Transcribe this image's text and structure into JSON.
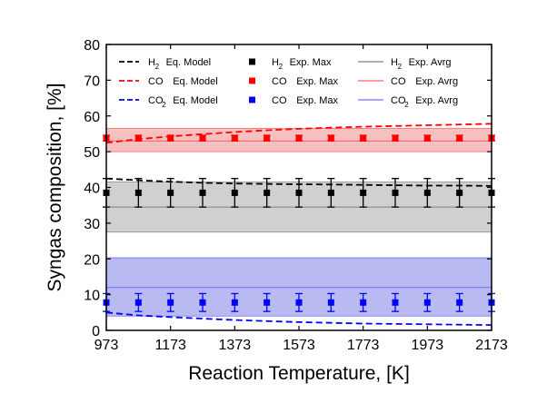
{
  "chart_data": {
    "type": "line",
    "xlabel": "Reaction Temperature, [K]",
    "ylabel": "Syngas composition, [%]",
    "xlim": [
      973,
      2173
    ],
    "ylim": [
      0,
      80
    ],
    "xticks": [
      973,
      1173,
      1373,
      1573,
      1773,
      1973,
      2173
    ],
    "yticks": [
      0,
      10,
      20,
      30,
      40,
      50,
      60,
      70,
      80
    ],
    "legend_position": "top",
    "colors": {
      "H2": "#000000",
      "CO": "#ff0000",
      "CO2": "#0000ff"
    },
    "eq_model": [
      {
        "name": "H2 Eq. Model",
        "color": "#000000",
        "x": [
          973,
          1073,
          1173,
          1273,
          1373,
          1473,
          1573,
          1673,
          1773,
          1873,
          1973,
          2073,
          2173
        ],
        "y": [
          42.5,
          42.0,
          41.6,
          41.3,
          41.1,
          41.0,
          40.9,
          40.8,
          40.7,
          40.6,
          40.5,
          40.5,
          40.4
        ]
      },
      {
        "name": "CO Eq. Model",
        "color": "#ff0000",
        "x": [
          973,
          1073,
          1173,
          1273,
          1373,
          1473,
          1573,
          1673,
          1773,
          1873,
          1973,
          2073,
          2173
        ],
        "y": [
          52.5,
          53.5,
          54.3,
          54.9,
          55.5,
          56.0,
          56.4,
          56.7,
          57.0,
          57.2,
          57.4,
          57.6,
          57.8
        ]
      },
      {
        "name": "CO2 Eq. Model",
        "color": "#0000ff",
        "x": [
          973,
          1073,
          1173,
          1273,
          1373,
          1473,
          1573,
          1673,
          1773,
          1873,
          1973,
          2073,
          2173
        ],
        "y": [
          5.0,
          4.2,
          3.7,
          3.3,
          2.9,
          2.6,
          2.3,
          2.1,
          1.9,
          1.8,
          1.7,
          1.6,
          1.5
        ]
      }
    ],
    "exp_max": [
      {
        "name": "H2 Exp. Max",
        "color": "#000000",
        "x": [
          973,
          1073,
          1173,
          1273,
          1373,
          1473,
          1573,
          1673,
          1773,
          1873,
          1973,
          2073,
          2173
        ],
        "y": [
          38.5,
          38.5,
          38.5,
          38.5,
          38.5,
          38.5,
          38.5,
          38.5,
          38.5,
          38.5,
          38.5,
          38.5,
          38.5
        ],
        "err": 4
      },
      {
        "name": "CO Exp. Max",
        "color": "#ff0000",
        "x": [
          973,
          1073,
          1173,
          1273,
          1373,
          1473,
          1573,
          1673,
          1773,
          1873,
          1973,
          2073,
          2173
        ],
        "y": [
          53.8,
          53.8,
          53.8,
          53.8,
          53.8,
          53.8,
          53.8,
          53.8,
          53.8,
          53.8,
          53.8,
          53.8,
          53.8
        ],
        "err": 0.8
      },
      {
        "name": "CO Exp. Max",
        "color": "#0000ff",
        "x": [
          973,
          1073,
          1173,
          1273,
          1373,
          1473,
          1573,
          1673,
          1773,
          1873,
          1973,
          2073,
          2173
        ],
        "y": [
          7.8,
          7.8,
          7.8,
          7.8,
          7.8,
          7.8,
          7.8,
          7.8,
          7.8,
          7.8,
          7.8,
          7.8,
          7.8
        ],
        "err": 2.5
      }
    ],
    "exp_avrg": [
      {
        "name": "H2 Exp. Avrg",
        "color": "#808080",
        "fill": "#c8c8c8",
        "avg": 34.5,
        "low": 27.5,
        "high": 41.5
      },
      {
        "name": "CO Exp. Avrg",
        "color": "#ff6060",
        "fill": "#f5b5b5",
        "avg": 53.0,
        "low": 50.0,
        "high": 56.5
      },
      {
        "name": "CO2 Exp. Avrg",
        "color": "#7070ff",
        "fill": "#aeaef0",
        "avg": 12.0,
        "low": 4.0,
        "high": 20.3
      }
    ],
    "legend": [
      [
        {
          "main": "H",
          "sub": "2",
          "tail": "Eq. Model",
          "kind": "dash",
          "color": "#000000"
        },
        {
          "main": "H",
          "sub": "2",
          "tail": "Exp. Max",
          "kind": "square",
          "color": "#000000"
        },
        {
          "main": "H",
          "sub": "2",
          "tail": "Exp. Avrg",
          "kind": "line",
          "color": "#808080"
        }
      ],
      [
        {
          "main": "CO",
          "sub": "",
          "tail": "Eq. Model",
          "kind": "dash",
          "color": "#ff0000"
        },
        {
          "main": "CO",
          "sub": "",
          "tail": "Exp. Max",
          "kind": "square",
          "color": "#ff0000"
        },
        {
          "main": "CO",
          "sub": "",
          "tail": "Exp. Avrg",
          "kind": "line",
          "color": "#ff6060"
        }
      ],
      [
        {
          "main": "CO",
          "sub": "2",
          "tail": "Eq. Model",
          "kind": "dash",
          "color": "#0000ff"
        },
        {
          "main": "CO",
          "sub": "",
          "tail": "Exp. Max",
          "kind": "square",
          "color": "#0000ff"
        },
        {
          "main": "CO",
          "sub": "2",
          "tail": "Exp. Avrg",
          "kind": "line",
          "color": "#7070ff"
        }
      ]
    ]
  }
}
